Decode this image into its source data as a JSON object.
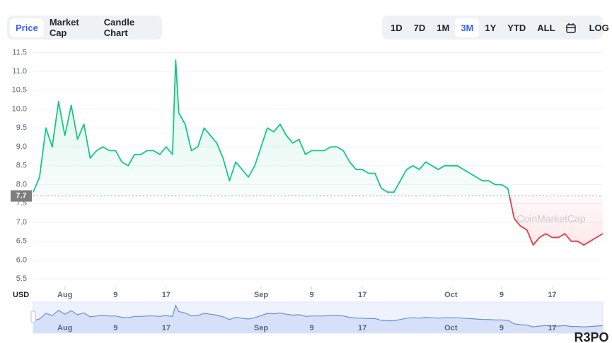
{
  "tabs": [
    "Price",
    "Market Cap",
    "Candle Chart"
  ],
  "ranges": [
    "1D",
    "7D",
    "1M",
    "3M",
    "1Y",
    "YTD",
    "ALL"
  ],
  "log_button": "LOG",
  "watermark": "CoinMarketCap",
  "brand": "R3PO",
  "chart_data": {
    "type": "line",
    "y_axis_label": "USD",
    "x": [
      -5,
      -4,
      -3,
      -2,
      -1,
      0,
      1,
      2,
      3,
      4,
      5,
      6,
      7,
      8,
      9,
      10,
      11,
      12,
      13,
      14,
      15,
      16,
      17,
      17.5,
      18,
      19,
      20,
      21,
      22,
      23,
      24,
      25,
      26,
      27,
      28,
      29,
      30,
      31,
      32,
      33,
      34,
      35,
      36,
      37,
      38,
      39,
      40,
      41,
      42,
      43,
      44,
      45,
      46,
      47,
      48,
      49,
      50,
      51,
      52,
      53,
      54,
      55,
      56,
      57,
      58,
      59,
      60,
      61,
      62,
      63,
      64,
      65,
      66,
      67,
      68,
      69,
      70,
      71,
      72,
      73,
      74,
      75,
      76,
      77,
      78,
      79,
      80,
      81,
      82,
      83,
      84,
      85
    ],
    "values": [
      7.8,
      8.2,
      9.5,
      9.0,
      10.2,
      9.3,
      10.1,
      9.2,
      9.6,
      8.7,
      8.9,
      9.0,
      8.9,
      8.9,
      8.6,
      8.5,
      8.8,
      8.8,
      8.9,
      8.9,
      8.8,
      9.0,
      8.8,
      11.3,
      9.9,
      9.6,
      8.9,
      9.0,
      9.5,
      9.3,
      9.1,
      8.7,
      8.1,
      8.6,
      8.4,
      8.2,
      8.5,
      9.0,
      9.5,
      9.4,
      9.6,
      9.3,
      9.1,
      9.2,
      8.8,
      8.9,
      8.9,
      8.9,
      9.0,
      9.0,
      8.9,
      8.6,
      8.4,
      8.4,
      8.3,
      8.3,
      7.9,
      7.8,
      7.8,
      8.1,
      8.4,
      8.5,
      8.4,
      8.6,
      8.5,
      8.4,
      8.5,
      8.5,
      8.5,
      8.4,
      8.3,
      8.2,
      8.1,
      8.1,
      8.0,
      8.0,
      7.9,
      7.1,
      6.9,
      6.8,
      6.4,
      6.6,
      6.7,
      6.6,
      6.6,
      6.7,
      6.5,
      6.5,
      6.4,
      6.5,
      6.6,
      6.7
    ],
    "color": "#16c784",
    "below_color": "#ea3943",
    "reference_line": 7.7,
    "xlim": [
      -5,
      85
    ],
    "xticks": [
      {
        "value": 0,
        "label": "Aug"
      },
      {
        "value": 8,
        "label": "9"
      },
      {
        "value": 16,
        "label": "17"
      },
      {
        "value": 31,
        "label": "Sep"
      },
      {
        "value": 39,
        "label": "9"
      },
      {
        "value": 47,
        "label": "17"
      },
      {
        "value": 61,
        "label": "Oct"
      },
      {
        "value": 69,
        "label": "9"
      },
      {
        "value": 77,
        "label": "17"
      }
    ],
    "ylim": [
      5.3,
      11.6
    ],
    "yticks": [
      5.5,
      {
        "value": 6,
        "label": "6.0"
      },
      6.5,
      {
        "value": 7,
        "label": "7.0"
      },
      7.5,
      {
        "value": 8,
        "label": "8.0"
      },
      8.5,
      {
        "value": 9,
        "label": "9.0"
      },
      9.5,
      {
        "value": 10,
        "label": "10.0"
      },
      10.5,
      {
        "value": 11,
        "label": "11.0"
      },
      11.5
    ],
    "grid": true
  }
}
